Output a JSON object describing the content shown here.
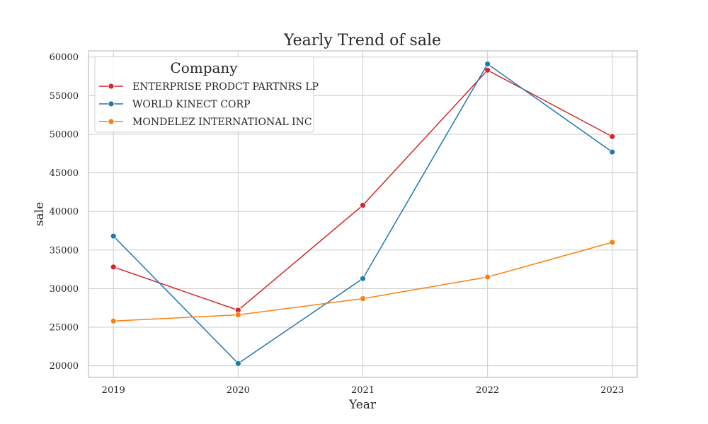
{
  "chart_data": {
    "type": "line",
    "title": "Yearly Trend of sale",
    "xlabel": "Year",
    "ylabel": "sale",
    "x": [
      2019,
      2020,
      2021,
      2022,
      2023
    ],
    "xlim": [
      2018.8,
      2023.2
    ],
    "ylim": [
      18500,
      60800
    ],
    "yticks": [
      20000,
      25000,
      30000,
      35000,
      40000,
      45000,
      50000,
      55000,
      60000
    ],
    "grid": true,
    "legend": {
      "title": "Company",
      "placement": "top-left"
    },
    "series": [
      {
        "name": "ENTERPRISE PRODCT PARTNRS LP",
        "color": "#d62728",
        "values": [
          32800,
          27200,
          40800,
          58300,
          49700
        ]
      },
      {
        "name": "WORLD KINECT CORP",
        "color": "#1f77b4",
        "values": [
          36800,
          20300,
          31300,
          59100,
          47700
        ]
      },
      {
        "name": "MONDELEZ INTERNATIONAL INC",
        "color": "#ff7f0e",
        "values": [
          25800,
          26600,
          28700,
          31500,
          36000
        ]
      }
    ]
  }
}
